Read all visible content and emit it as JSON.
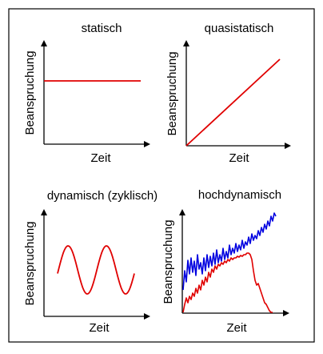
{
  "colors": {
    "axis": "#000000",
    "frame": "#000000",
    "red": "#e00000",
    "blue": "#0000e0"
  },
  "panels": [
    {
      "id": "statisch",
      "title": "statisch",
      "xlabel": "Zeit",
      "ylabel": "Beanspruchung"
    },
    {
      "id": "quasistatisch",
      "title": "quasistatisch",
      "xlabel": "Zeit",
      "ylabel": "Beanspruchung"
    },
    {
      "id": "dynamisch",
      "title": "dynamisch (zyklisch)",
      "xlabel": "Zeit",
      "ylabel": "Beanspruchung"
    },
    {
      "id": "hochdynamisch",
      "title": "hochdynamisch",
      "xlabel": "Zeit",
      "ylabel": "Beanspruchung"
    }
  ]
}
